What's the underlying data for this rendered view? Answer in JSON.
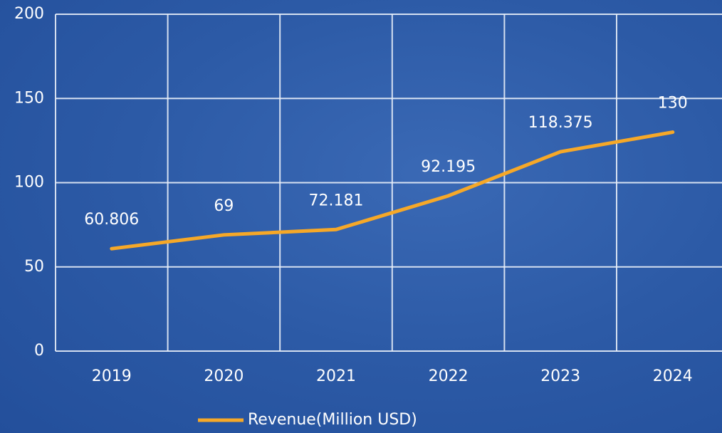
{
  "chart_data": {
    "type": "line",
    "categories": [
      "2019",
      "2020",
      "2021",
      "2022",
      "2023",
      "2024"
    ],
    "series": [
      {
        "name": "Revenue(Million USD)",
        "color": "#f6a828",
        "values": [
          60.806,
          69,
          72.181,
          92.195,
          118.375,
          130
        ]
      }
    ],
    "ylim": [
      0,
      200
    ],
    "yticks": [
      0,
      50,
      100,
      150,
      200
    ],
    "grid": true,
    "legend": "bottom"
  }
}
